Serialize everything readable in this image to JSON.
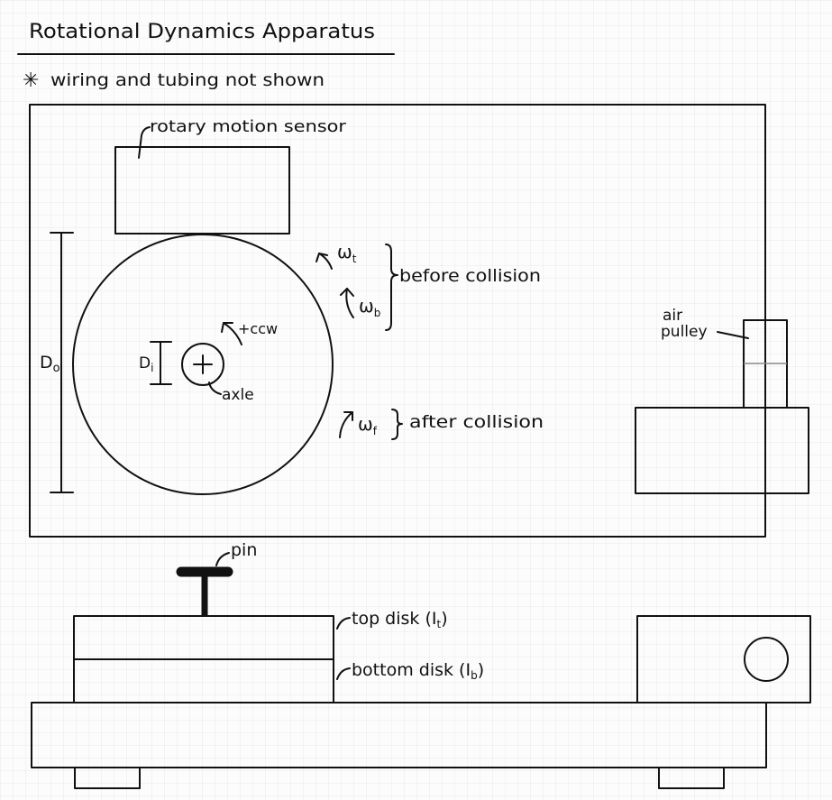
{
  "title": "Rotational Dynamics Apparatus",
  "note": {
    "symbol": "✳",
    "text": "wiring and tubing not shown"
  },
  "top_view": {
    "rotary_motion_sensor": "rotary motion sensor",
    "outer_diameter_label": "D",
    "outer_diameter_sub": "o",
    "inner_diameter_label": "D",
    "inner_diameter_sub": "i",
    "axle": "axle",
    "ccw": "+ccw",
    "omega_t": "ω",
    "omega_t_sub": "t",
    "omega_b": "ω",
    "omega_b_sub": "b",
    "omega_f": "ω",
    "omega_f_sub": "f",
    "before_collision": "before collision",
    "after_collision": "after collision",
    "air_pulley": "air pulley",
    "air_pulley_line1": "air",
    "air_pulley_line2": "pulley"
  },
  "side_view": {
    "pin": "pin",
    "top_disk": "top disk (I",
    "top_disk_sub": "t",
    "top_disk_close": ")",
    "bottom_disk": "bottom disk (I",
    "bottom_disk_sub": "b",
    "bottom_disk_close": ")"
  },
  "colors": {
    "ink": "#111111",
    "paper": "#fcfcfc",
    "grid": "#e6e6e6",
    "pin": "#111111",
    "pulley_divider": "#888888"
  }
}
